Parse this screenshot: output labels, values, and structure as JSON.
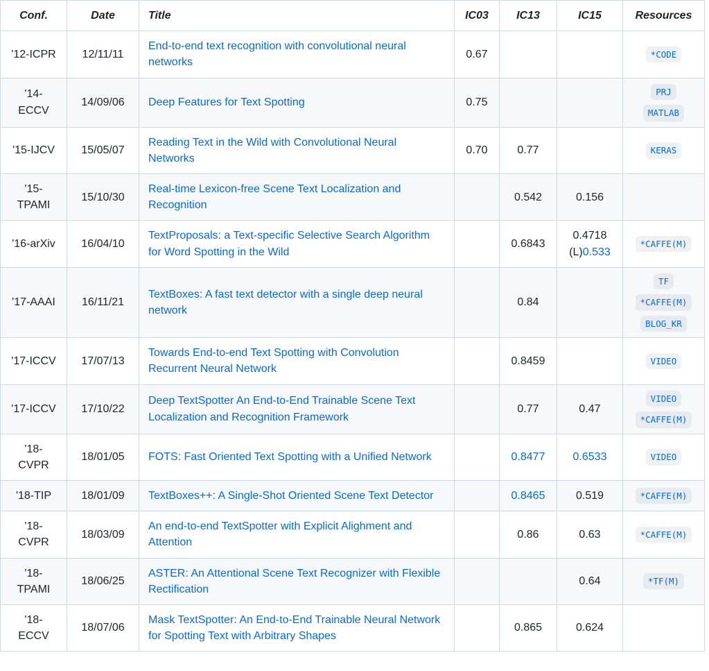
{
  "colors": {
    "link": "#0969da",
    "text": "#1f2328",
    "border": "#d0d7de",
    "row_alt_bg": "#f6f8fa",
    "badge_bg": "#afb8c133"
  },
  "table": {
    "headers": [
      "Conf.",
      "Date",
      "Title",
      "IC03",
      "IC13",
      "IC15",
      "Resources"
    ],
    "rows": [
      {
        "conf": "'12-ICPR",
        "date": "12/11/11",
        "title": "End-to-end text recognition with convolutional neural networks",
        "ic03": [
          {
            "text": "0.67",
            "link": false
          }
        ],
        "ic13": [],
        "ic15": [],
        "resources": [
          "*CODE"
        ]
      },
      {
        "conf": "'14-ECCV",
        "date": "14/09/06",
        "title": "Deep Features for Text Spotting",
        "ic03": [
          {
            "text": "0.75",
            "link": false
          }
        ],
        "ic13": [],
        "ic15": [],
        "resources": [
          "PRJ",
          "MATLAB"
        ]
      },
      {
        "conf": "'15-IJCV",
        "date": "15/05/07",
        "title": "Reading Text in the Wild with Convolutional Neural Networks",
        "ic03": [
          {
            "text": "0.70",
            "link": false
          }
        ],
        "ic13": [
          {
            "text": "0.77",
            "link": false
          }
        ],
        "ic15": [],
        "resources": [
          "KERAS"
        ]
      },
      {
        "conf": "'15-TPAMI",
        "date": "15/10/30",
        "title": "Real-time Lexicon-free Scene Text Localization and Recognition",
        "ic03": [],
        "ic13": [
          {
            "text": "0.542",
            "link": false
          }
        ],
        "ic15": [
          {
            "text": "0.156",
            "link": false
          }
        ],
        "resources": []
      },
      {
        "conf": "'16-arXiv",
        "date": "16/04/10",
        "title": "TextProposals: a Text-specific Selective Search Algorithm for Word Spotting in the Wild",
        "ic03": [],
        "ic13": [
          {
            "text": "0.6843",
            "link": false
          }
        ],
        "ic15": [
          {
            "text": "0.4718 (L)",
            "link": false
          },
          {
            "text": "0.533",
            "link": true
          }
        ],
        "resources": [
          "*CAFFE(M)"
        ]
      },
      {
        "conf": "'17-AAAI",
        "date": "16/11/21",
        "title": "TextBoxes: A fast text detector with a single deep neural network",
        "ic03": [],
        "ic13": [
          {
            "text": "0.84",
            "link": false
          }
        ],
        "ic15": [],
        "resources": [
          "TF",
          "*CAFFE(M)",
          "BLOG_KR"
        ]
      },
      {
        "conf": "'17-ICCV",
        "date": "17/07/13",
        "title": "Towards End-to-end Text Spotting with Convolution Recurrent Neural Network",
        "ic03": [],
        "ic13": [
          {
            "text": "0.8459",
            "link": false
          }
        ],
        "ic15": [],
        "resources": [
          "VIDEO"
        ]
      },
      {
        "conf": "'17-ICCV",
        "date": "17/10/22",
        "title": "Deep TextSpotter An End-to-End Trainable Scene Text Localization and Recognition Framework",
        "ic03": [],
        "ic13": [
          {
            "text": "0.77",
            "link": false
          }
        ],
        "ic15": [
          {
            "text": "0.47",
            "link": false
          }
        ],
        "resources": [
          "VIDEO",
          "*CAFFE(M)"
        ]
      },
      {
        "conf": "'18-CVPR",
        "date": "18/01/05",
        "title": "FOTS: Fast Oriented Text Spotting with a Unified Network",
        "ic03": [],
        "ic13": [
          {
            "text": "0.8477",
            "link": true
          }
        ],
        "ic15": [
          {
            "text": "0.6533",
            "link": true
          }
        ],
        "resources": [
          "VIDEO"
        ]
      },
      {
        "conf": "'18-TIP",
        "date": "18/01/09",
        "title": "TextBoxes++: A Single-Shot Oriented Scene Text Detector",
        "ic03": [],
        "ic13": [
          {
            "text": "0.8465",
            "link": true
          }
        ],
        "ic15": [
          {
            "text": "0.519",
            "link": false
          }
        ],
        "resources": [
          "*CAFFE(M)"
        ]
      },
      {
        "conf": "'18-CVPR",
        "date": "18/03/09",
        "title": "An end-to-end TextSpotter with Explicit Alighment and Attention",
        "ic03": [],
        "ic13": [
          {
            "text": "0.86",
            "link": false
          }
        ],
        "ic15": [
          {
            "text": "0.63",
            "link": false
          }
        ],
        "resources": [
          "*CAFFE(M)"
        ]
      },
      {
        "conf": "'18-TPAMI",
        "date": "18/06/25",
        "title": "ASTER: An Attentional Scene Text Recognizer with Flexible Rectification",
        "ic03": [],
        "ic13": [],
        "ic15": [
          {
            "text": "0.64",
            "link": false
          }
        ],
        "resources": [
          "*TF(M)"
        ]
      },
      {
        "conf": "'18-ECCV",
        "date": "18/07/06",
        "title": "Mask TextSpotter: An End-to-End Trainable Neural Network for Spotting Text with Arbitrary Shapes",
        "ic03": [],
        "ic13": [
          {
            "text": "0.865",
            "link": false
          }
        ],
        "ic15": [
          {
            "text": "0.624",
            "link": false
          }
        ],
        "resources": []
      }
    ]
  }
}
